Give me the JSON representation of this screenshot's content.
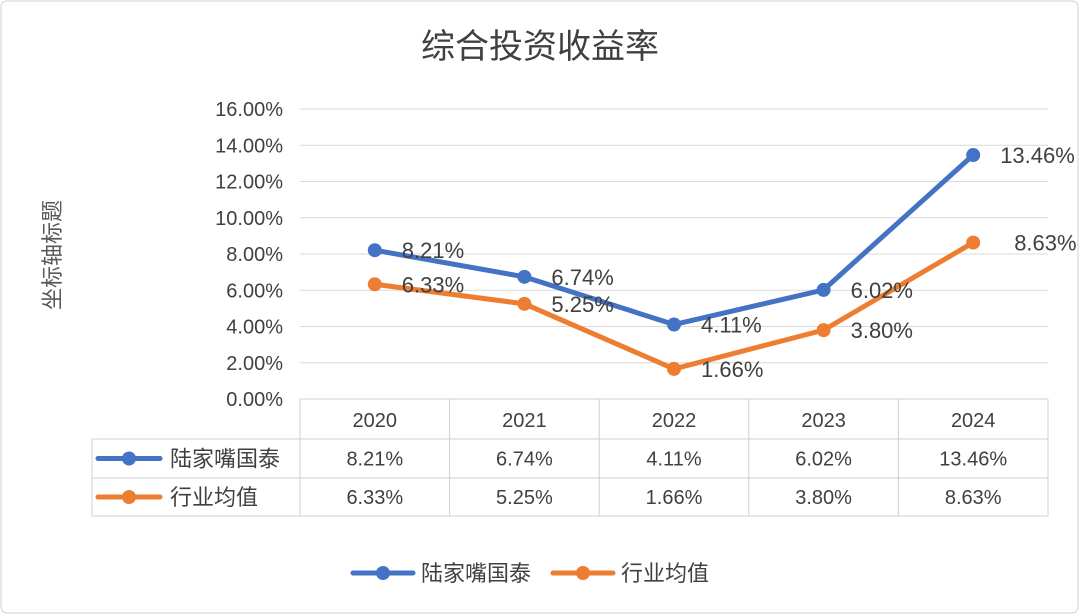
{
  "chart_data": {
    "type": "line",
    "title": "综合投资收益率",
    "ylabel": "坐标轴标题",
    "xlabel": "",
    "categories": [
      "2020",
      "2021",
      "2022",
      "2023",
      "2024"
    ],
    "ylim": [
      0,
      16
    ],
    "yticks": [
      "0.00%",
      "2.00%",
      "4.00%",
      "6.00%",
      "8.00%",
      "10.00%",
      "12.00%",
      "14.00%",
      "16.00%"
    ],
    "grid": true,
    "legend": "bottom",
    "data_table": true,
    "series": [
      {
        "name": "陆家嘴国泰",
        "color": "#4472C4",
        "values": [
          8.21,
          6.74,
          4.11,
          6.02,
          13.46
        ],
        "labels": [
          "8.21%",
          "6.74%",
          "4.11%",
          "6.02%",
          "13.46%"
        ]
      },
      {
        "name": "行业均值",
        "color": "#ED7D31",
        "values": [
          6.33,
          5.25,
          1.66,
          3.8,
          8.63
        ],
        "labels": [
          "6.33%",
          "5.25%",
          "1.66%",
          "3.80%",
          "8.63%"
        ]
      }
    ]
  }
}
